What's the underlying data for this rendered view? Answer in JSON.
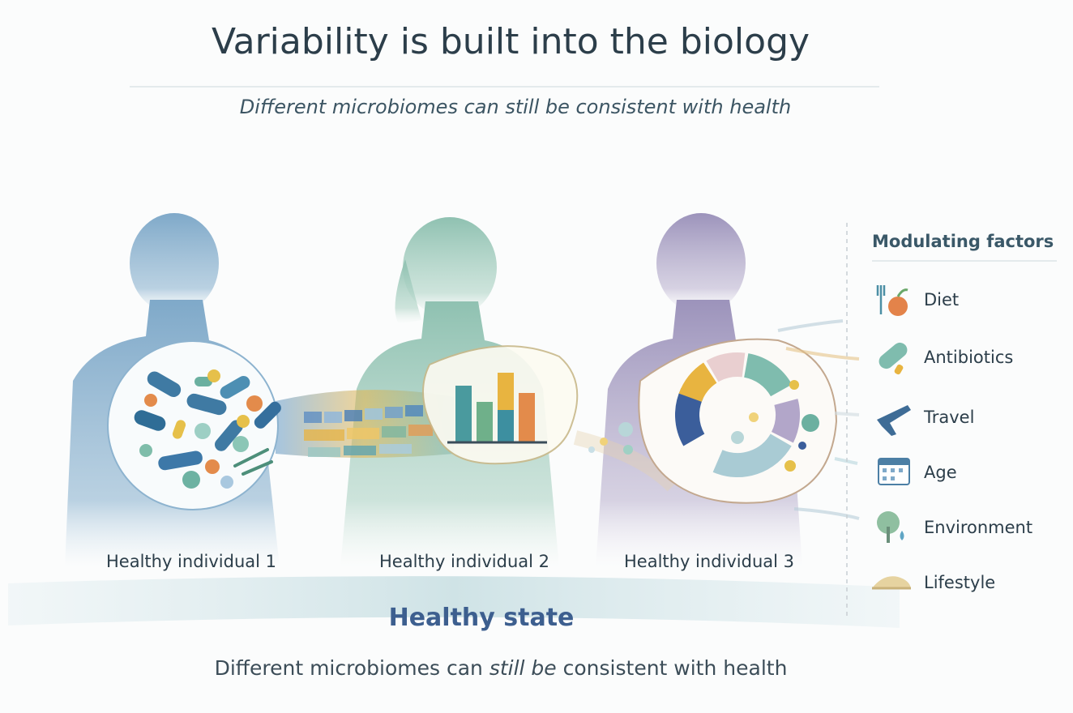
{
  "header": {
    "title": "Variability is built into the biology",
    "subtitle": "Different microbiomes can still be consistent with health"
  },
  "individuals": [
    {
      "label": "Healthy individual 1"
    },
    {
      "label": "Healthy individual 2"
    },
    {
      "label": "Healthy individual 3"
    }
  ],
  "factors": {
    "title": "Modulating factors",
    "items": [
      "Diet",
      "Antibiotics",
      "Travel",
      "Age",
      "Environment",
      "Lifestyle"
    ]
  },
  "band": {
    "label": "Healthy state"
  },
  "footer": {
    "parts": [
      "Different microbiomes can ",
      "still be",
      " consistent with health"
    ]
  }
}
